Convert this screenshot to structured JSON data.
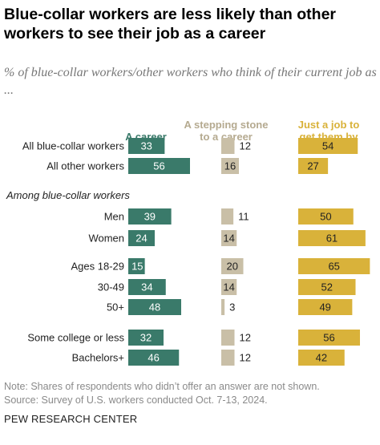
{
  "title": "Blue-collar workers are less likely than other workers to see their job as a career",
  "subtitle": "% of blue-collar workers/other workers who think of their current job as ...",
  "notes": [
    "Note: Shares of respondents who didn’t offer an answer are not shown.",
    "Source: Survey of U.S. workers conducted Oct. 7-13, 2024."
  ],
  "brand": "PEW RESEARCH CENTER",
  "colors": {
    "career": "#3a7a6a",
    "stepping": "#c9bfa7",
    "job": "#d9b23a"
  },
  "chart_data": {
    "type": "bar",
    "orientation": "horizontal",
    "columns": [
      {
        "key": "career",
        "name": "A career",
        "header_lines": [
          "A career"
        ]
      },
      {
        "key": "stepping",
        "name": "A stepping stone to a career",
        "header_lines": [
          "A stepping stone",
          "to a career"
        ]
      },
      {
        "key": "job",
        "name": "Just a job to get them by",
        "header_lines": [
          "Just a job to",
          "get them by"
        ]
      }
    ],
    "section_label": "Among blue-collar workers",
    "rows": [
      {
        "label": "All blue-collar workers",
        "career": 33,
        "stepping": 12,
        "job": 54
      },
      {
        "label": "All other workers",
        "career": 56,
        "stepping": 16,
        "job": 27
      },
      {
        "label": "Men",
        "career": 39,
        "stepping": 11,
        "job": 50
      },
      {
        "label": "Women",
        "career": 24,
        "stepping": 14,
        "job": 61
      },
      {
        "label": "Ages 18-29",
        "career": 15,
        "stepping": 20,
        "job": 65
      },
      {
        "label": "30-49",
        "career": 34,
        "stepping": 14,
        "job": 52
      },
      {
        "label": "50+",
        "career": 48,
        "stepping": 3,
        "job": 49
      },
      {
        "label": "Some college or less",
        "career": 32,
        "stepping": 12,
        "job": 56
      },
      {
        "label": "Bachelors+",
        "career": 46,
        "stepping": 12,
        "job": 42
      }
    ]
  }
}
